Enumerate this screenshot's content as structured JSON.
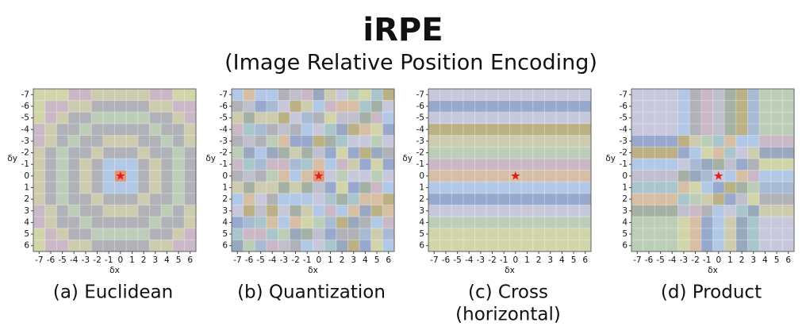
{
  "title": "iRPE",
  "subtitle": "(Image Relative Position Encoding)",
  "panels": [
    {
      "caption": [
        "(a) Euclidean"
      ],
      "x_label": "δx",
      "y_label": "δy",
      "xticks": [
        -7,
        -6,
        -5,
        -4,
        -3,
        -2,
        -1,
        0,
        1,
        2,
        3,
        4,
        5,
        6
      ],
      "yticks": [
        -7,
        -6,
        -5,
        -4,
        -3,
        -2,
        -1,
        0,
        1,
        2,
        3,
        4,
        5,
        6
      ]
    },
    {
      "caption": [
        "(b) Quantization"
      ],
      "x_label": "δx",
      "y_label": "δy",
      "xticks": [
        -7,
        -6,
        -5,
        -4,
        -3,
        -2,
        -1,
        0,
        1,
        2,
        3,
        4,
        5,
        6
      ],
      "yticks": [
        -7,
        -6,
        -5,
        -4,
        -3,
        -2,
        -1,
        0,
        1,
        2,
        3,
        4,
        5,
        6
      ]
    },
    {
      "caption": [
        "(c) Cross",
        "(horizontal)"
      ],
      "x_label": "δx",
      "y_label": "δy",
      "xticks": [
        -7,
        -6,
        -5,
        -4,
        -3,
        -2,
        -1,
        0,
        1,
        2,
        3,
        4,
        5,
        6
      ],
      "yticks": [
        -7,
        -6,
        -5,
        -4,
        -3,
        -2,
        -1,
        0,
        1,
        2,
        3,
        4,
        5,
        6
      ]
    },
    {
      "caption": [
        "(d) Product"
      ],
      "x_label": "δx",
      "y_label": "δy",
      "xticks": [
        -7,
        -6,
        -5,
        -4,
        -3,
        -2,
        -1,
        0,
        1,
        2,
        3,
        4,
        5,
        6
      ],
      "yticks": [
        -7,
        -6,
        -5,
        -4,
        -3,
        -2,
        -1,
        0,
        1,
        2,
        3,
        4,
        5,
        6
      ]
    }
  ]
}
